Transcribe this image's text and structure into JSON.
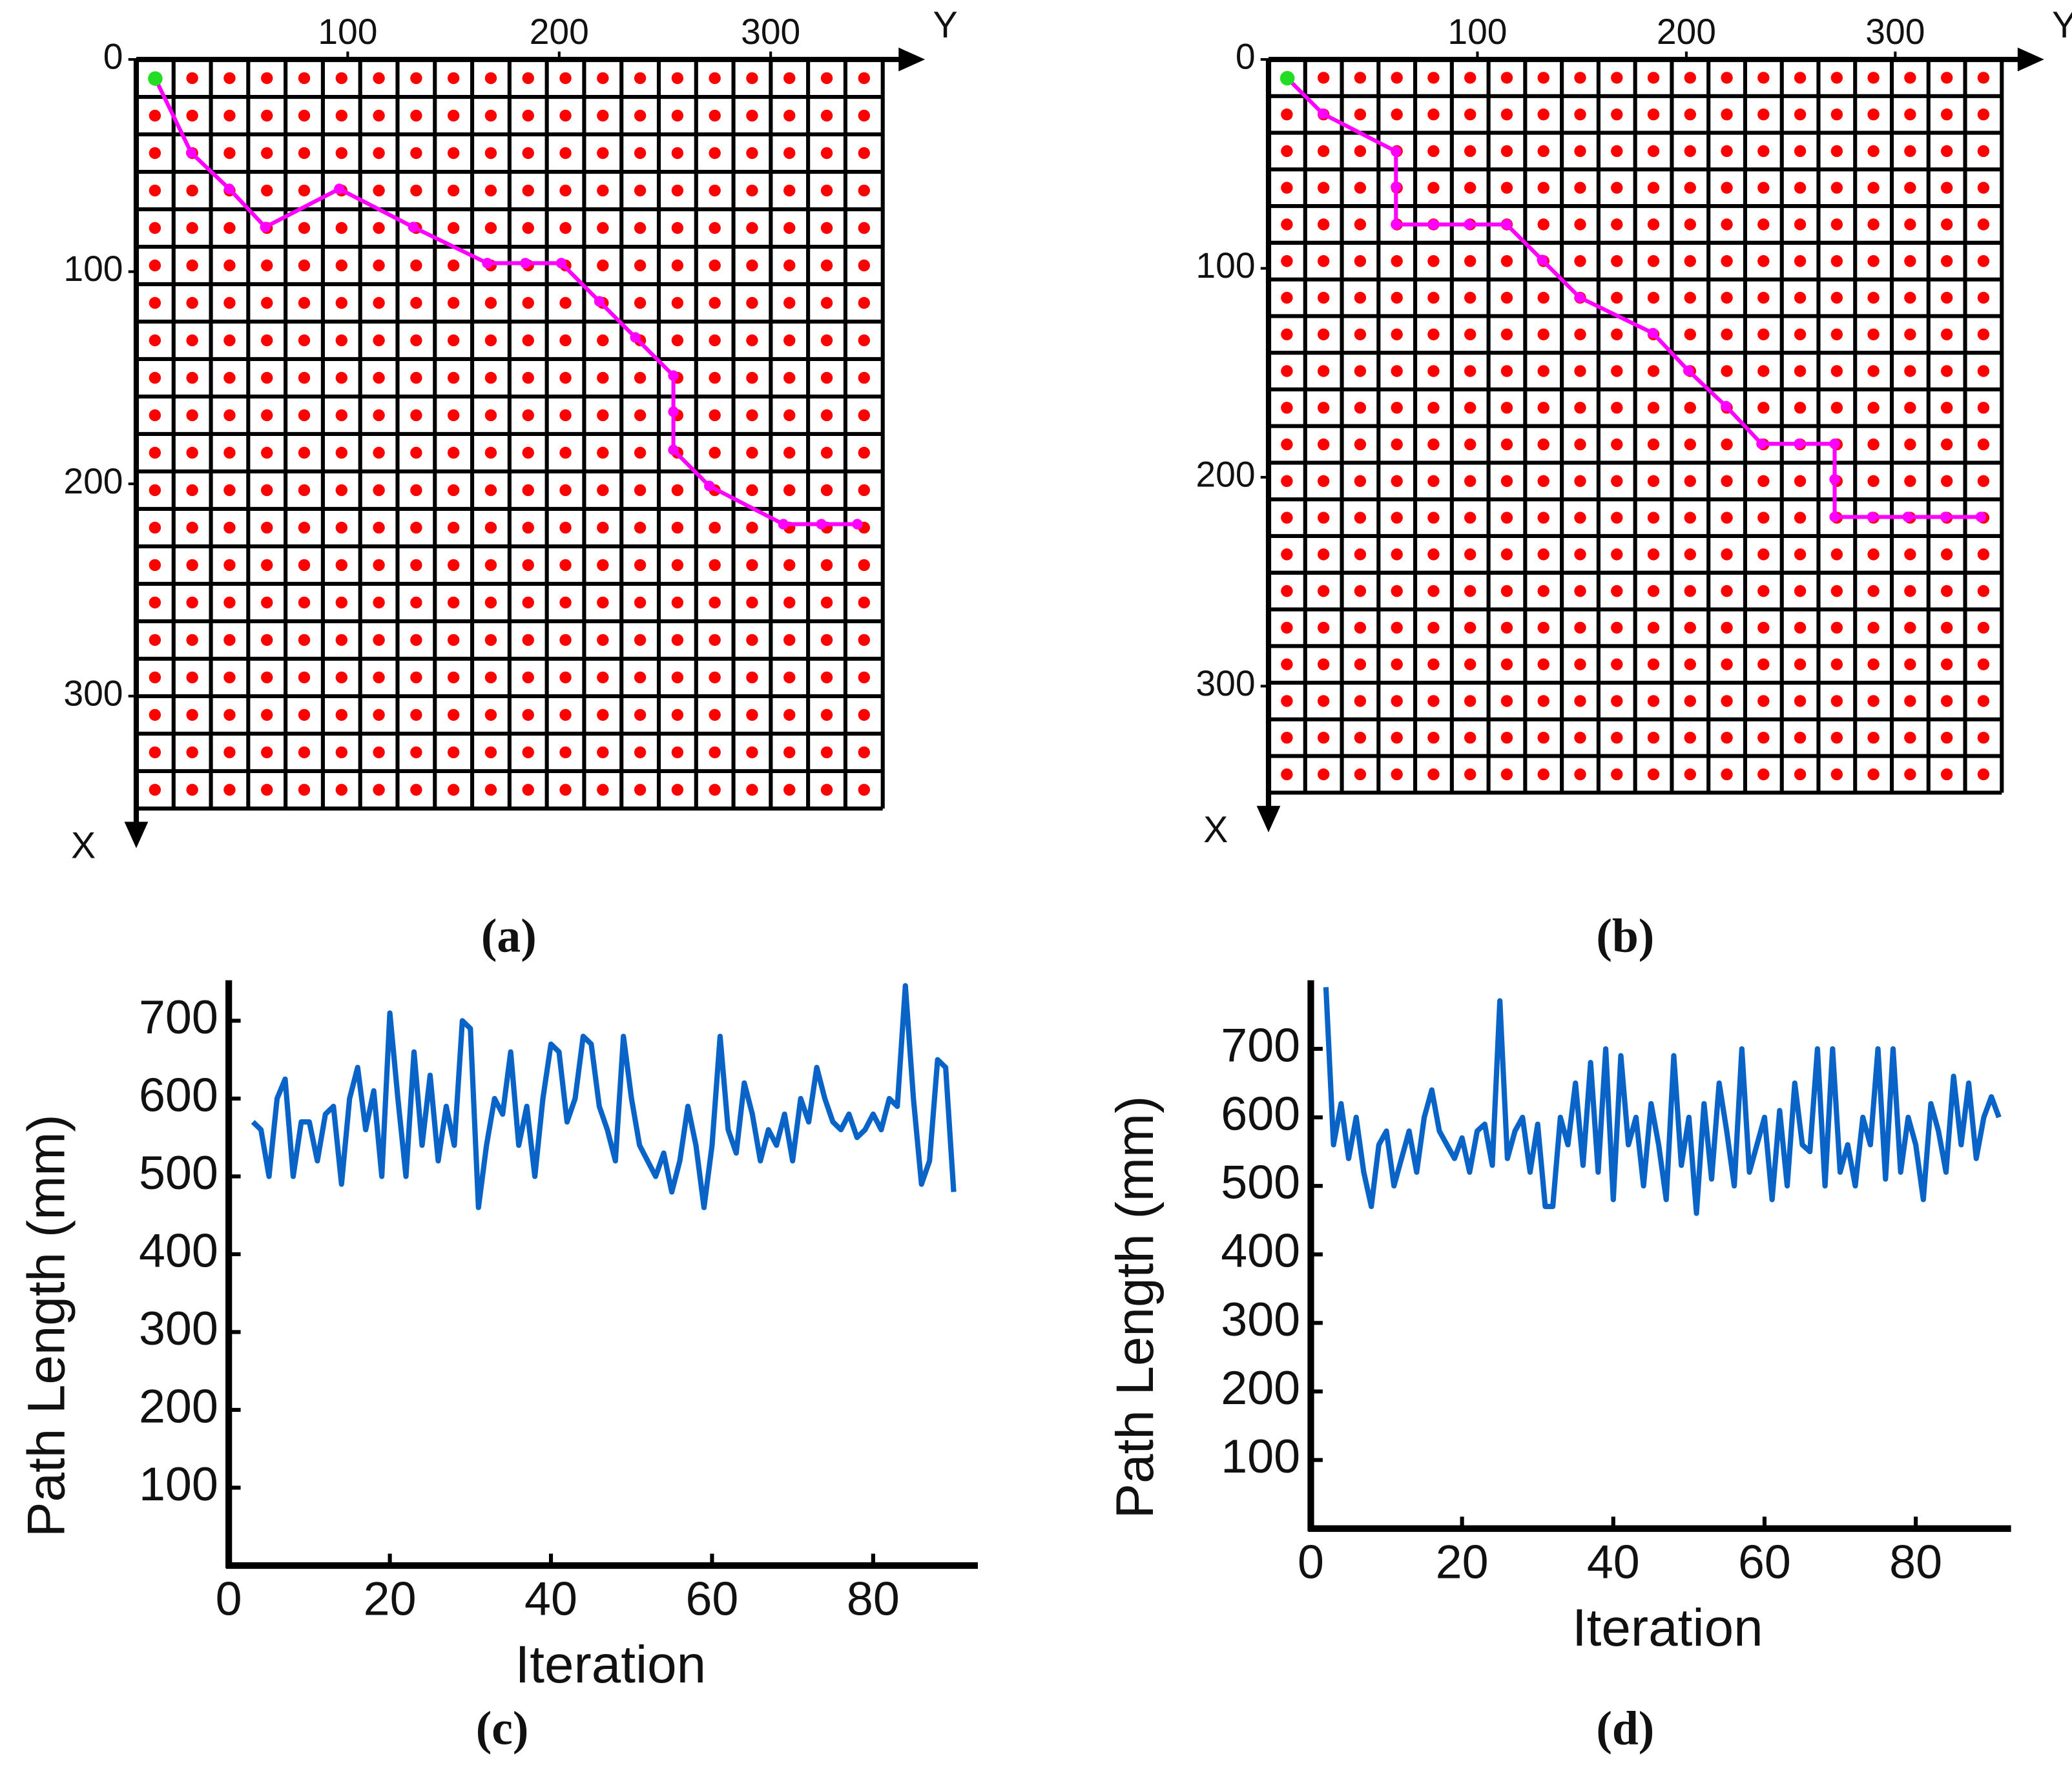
{
  "chart_data": [
    {
      "type": "grid_path",
      "label": "(a)",
      "x_label": "Y",
      "y_label": "X",
      "xlim": [
        0,
        353
      ],
      "ylim": [
        0,
        353
      ],
      "xticks": [
        100,
        200,
        300
      ],
      "yticks": [
        0,
        100,
        200,
        300
      ],
      "y_inverted": true,
      "x": [
        9,
        26,
        44,
        61,
        96,
        131,
        166,
        184,
        201,
        219,
        236,
        254,
        254,
        254,
        271,
        306,
        324,
        341
      ],
      "values": [
        9,
        44,
        61,
        79,
        61,
        79,
        96,
        96,
        96,
        114,
        131,
        149,
        166,
        184,
        201,
        219,
        219,
        219
      ],
      "color": "#ff00ff",
      "start_color": "#22dd22",
      "node_color": "#ff0000"
    },
    {
      "type": "grid_path",
      "label": "(b)",
      "x_label": "Y",
      "y_label": "X",
      "xlim": [
        0,
        351
      ],
      "ylim": [
        0,
        351
      ],
      "xticks": [
        100,
        200,
        300
      ],
      "yticks": [
        0,
        100,
        200,
        300
      ],
      "y_inverted": true,
      "x": [
        9,
        26,
        61,
        61,
        61,
        79,
        96,
        114,
        131,
        149,
        184,
        201,
        219,
        236,
        254,
        271,
        271,
        271,
        289,
        306,
        324,
        341
      ],
      "values": [
        9,
        26,
        44,
        61,
        79,
        79,
        79,
        79,
        96,
        114,
        131,
        149,
        166,
        184,
        184,
        184,
        201,
        219,
        219,
        219,
        219,
        219
      ],
      "color": "#ff00ff",
      "start_color": "#22dd22",
      "node_color": "#ff0000"
    },
    {
      "type": "line",
      "label": "(c)",
      "x_label": "Iteration",
      "y_label": "Path Length (mm)",
      "xlim": [
        0,
        93
      ],
      "ylim": [
        0,
        752
      ],
      "xticks": [
        0,
        20,
        40,
        60,
        80
      ],
      "yticks": [
        100,
        200,
        300,
        400,
        500,
        600,
        700
      ],
      "x": [
        3,
        4,
        5,
        6,
        7,
        8,
        9,
        10,
        11,
        12,
        13,
        14,
        15,
        16,
        17,
        18,
        19,
        20,
        21,
        22,
        23,
        24,
        25,
        26,
        27,
        28,
        29,
        30,
        31,
        32,
        33,
        34,
        35,
        36,
        37,
        38,
        39,
        40,
        41,
        42,
        43,
        44,
        45,
        46,
        47,
        48,
        49,
        50,
        51,
        52,
        53,
        54,
        55,
        56,
        57,
        58,
        59,
        60,
        61,
        62,
        63,
        64,
        65,
        66,
        67,
        68,
        69,
        70,
        71,
        72,
        73,
        74,
        75,
        76,
        77,
        78,
        79,
        80,
        81,
        82,
        83,
        84,
        85,
        86,
        87,
        88,
        89,
        90
      ],
      "values": [
        570,
        560,
        500,
        600,
        625,
        500,
        570,
        570,
        520,
        580,
        590,
        490,
        600,
        640,
        560,
        610,
        500,
        710,
        600,
        500,
        660,
        540,
        630,
        520,
        590,
        540,
        700,
        690,
        460,
        540,
        600,
        580,
        660,
        540,
        590,
        500,
        600,
        670,
        660,
        570,
        600,
        680,
        670,
        590,
        560,
        520,
        680,
        600,
        540,
        520,
        500,
        530,
        480,
        520,
        590,
        540,
        460,
        540,
        680,
        560,
        530,
        620,
        580,
        520,
        560,
        540,
        580,
        520,
        600,
        570,
        640,
        600,
        570,
        560,
        580,
        550,
        560,
        580,
        560,
        600,
        590,
        745,
        600,
        490,
        520,
        650,
        640,
        480
      ],
      "color": "#0a64c8"
    },
    {
      "type": "line",
      "label": "(d)",
      "x_label": "Iteration",
      "y_label": "Path Length (mm)",
      "xlim": [
        0,
        92.6
      ],
      "ylim": [
        0,
        800
      ],
      "xticks": [
        0,
        20,
        40,
        60,
        80
      ],
      "yticks": [
        100,
        200,
        300,
        400,
        500,
        600,
        700
      ],
      "x": [
        2,
        3,
        4,
        5,
        6,
        7,
        8,
        9,
        10,
        11,
        12,
        13,
        14,
        15,
        16,
        17,
        18,
        19,
        20,
        21,
        22,
        23,
        24,
        25,
        26,
        27,
        28,
        29,
        30,
        31,
        32,
        33,
        34,
        35,
        36,
        37,
        38,
        39,
        40,
        41,
        42,
        43,
        44,
        45,
        46,
        47,
        48,
        49,
        50,
        51,
        52,
        53,
        54,
        55,
        56,
        57,
        58,
        59,
        60,
        61,
        62,
        63,
        64,
        65,
        66,
        67,
        68,
        69,
        70,
        71,
        72,
        73,
        74,
        75,
        76,
        77,
        78,
        79,
        80,
        81,
        82,
        83,
        84,
        85,
        86,
        87,
        88,
        89,
        90,
        91
      ],
      "values": [
        790,
        560,
        620,
        540,
        600,
        520,
        470,
        560,
        580,
        500,
        540,
        580,
        520,
        600,
        640,
        580,
        560,
        540,
        570,
        520,
        580,
        590,
        530,
        770,
        540,
        580,
        600,
        520,
        590,
        470,
        470,
        600,
        560,
        650,
        530,
        680,
        520,
        700,
        480,
        690,
        560,
        600,
        500,
        620,
        560,
        480,
        690,
        530,
        600,
        460,
        620,
        510,
        650,
        580,
        500,
        700,
        520,
        560,
        600,
        480,
        610,
        500,
        650,
        560,
        550,
        700,
        500,
        700,
        520,
        560,
        500,
        600,
        560,
        700,
        510,
        700,
        520,
        600,
        560,
        480,
        620,
        580,
        520,
        660,
        560,
        650,
        540,
        600,
        630,
        600
      ],
      "color": "#0a64c8"
    }
  ]
}
